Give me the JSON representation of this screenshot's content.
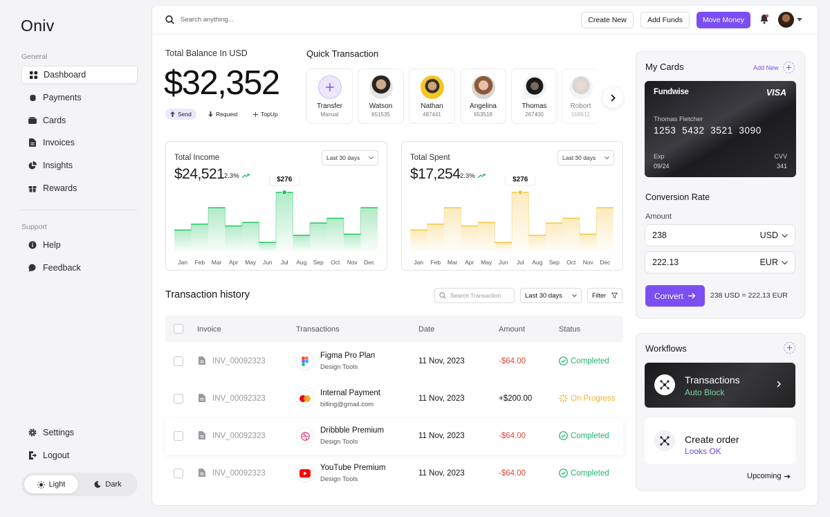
{
  "sidebar": {
    "logo": "Oniv",
    "general_label": "General",
    "general_items": [
      {
        "label": "Dashboard",
        "icon": "grid-icon",
        "active": true
      },
      {
        "label": "Payments",
        "icon": "coins-icon"
      },
      {
        "label": "Cards",
        "icon": "wallet-icon"
      },
      {
        "label": "Invoices",
        "icon": "document-icon"
      },
      {
        "label": "Insights",
        "icon": "pie-chart-icon"
      },
      {
        "label": "Rewards",
        "icon": "gift-icon"
      }
    ],
    "support_label": "Support",
    "support_items": [
      {
        "label": "Help",
        "icon": "info-icon"
      },
      {
        "label": "Feedback",
        "icon": "chat-icon"
      }
    ],
    "bottom_items": [
      {
        "label": "Settings",
        "icon": "gear-icon"
      },
      {
        "label": "Logout",
        "icon": "logout-icon"
      }
    ],
    "theme": {
      "light": "Light",
      "dark": "Dark",
      "selected": "Light"
    }
  },
  "topbar": {
    "search_placeholder": "Search anything...",
    "create_new": "Create New",
    "add_funds": "Add Funds",
    "move_money": "Move Money"
  },
  "balance": {
    "label": "Total Balance In USD",
    "amount": "$32,352",
    "actions": [
      "Send",
      "Request",
      "TopUp"
    ]
  },
  "quick_transaction": {
    "title": "Quick Transaction",
    "contacts": [
      {
        "name": "Transfer",
        "id": "Manual"
      },
      {
        "name": "Watson",
        "id": "651535"
      },
      {
        "name": "Nathan",
        "id": "487441"
      },
      {
        "name": "Angelina",
        "id": "653518"
      },
      {
        "name": "Thomas",
        "id": "267400"
      },
      {
        "name": "Robort",
        "id": "558612"
      }
    ]
  },
  "income": {
    "title": "Total Income",
    "value": "$24,521",
    "change": "2.3%",
    "range": "Last 30 days",
    "tooltip": "$276",
    "color": "#22c55e"
  },
  "spent": {
    "title": "Total Spent",
    "value": "$17,254",
    "change": "2.3%",
    "range": "Last 30 days",
    "tooltip": "$276",
    "color": "#f5c542"
  },
  "chart_data": [
    {
      "type": "area",
      "title": "Total Income",
      "categories": [
        "Jan",
        "Feb",
        "Mar",
        "Apr",
        "May",
        "Jun",
        "Jul",
        "Aug",
        "Sep",
        "Oct",
        "Nov",
        "Dec"
      ],
      "values": [
        0.36,
        0.46,
        0.74,
        0.43,
        0.49,
        0.15,
        1.0,
        0.27,
        0.48,
        0.56,
        0.29,
        0.74
      ],
      "highlight": {
        "category": "Jul",
        "label": "$276"
      },
      "grid": false
    },
    {
      "type": "area",
      "title": "Total Spent",
      "categories": [
        "Jan",
        "Feb",
        "Mar",
        "Apr",
        "May",
        "Jun",
        "Jul",
        "Aug",
        "Sep",
        "Oct",
        "Nov",
        "Dec"
      ],
      "values": [
        0.36,
        0.46,
        0.74,
        0.43,
        0.49,
        0.15,
        1.0,
        0.27,
        0.48,
        0.56,
        0.29,
        0.74
      ],
      "highlight": {
        "category": "Jul",
        "label": "$276"
      },
      "grid": false
    }
  ],
  "history": {
    "title": "Transaction history",
    "search_placeholder": "Search Transaction",
    "range": "Last 30 days",
    "filter": "Filter",
    "headers": [
      "Invoice",
      "Transactions",
      "Date",
      "Amount",
      "Status"
    ],
    "rows": [
      {
        "invoice": "INV_00092323",
        "name": "Figma Pro Plan",
        "sub": "Design Tools",
        "date": "11 Nov, 2023",
        "amount": "-$64.00",
        "status": "Completed",
        "icon": "figma-icon"
      },
      {
        "invoice": "INV_00092323",
        "name": "Internal Payment",
        "sub": "billing@gmail.com",
        "date": "11 Nov, 2023",
        "amount": "+$200.00",
        "status": "On Progress",
        "icon": "mastercard-icon"
      },
      {
        "invoice": "INV_00092323",
        "name": "Dribbble Premium",
        "sub": "Design Tools",
        "date": "11 Nov, 2023",
        "amount": "-$64.00",
        "status": "Completed",
        "icon": "dribbble-icon"
      },
      {
        "invoice": "INV_00092323",
        "name": "YouTube Premium",
        "sub": "Design Tools",
        "date": "11 Nov, 2023",
        "amount": "-$64.00",
        "status": "Completed",
        "icon": "youtube-icon"
      }
    ]
  },
  "my_cards": {
    "title": "My Cards",
    "add_new": "Add New",
    "card": {
      "brand": "Fundwise",
      "network": "VISA",
      "holder": "Thomas Fletcher",
      "number": "1253  5432  3521  3090",
      "exp_label": "Exp",
      "exp": "09/24",
      "cvv_label": "CVV",
      "cvv": "341"
    }
  },
  "conversion": {
    "title": "Conversion Rate",
    "amount_label": "Amount",
    "from_value": "238",
    "from_currency": "USD",
    "to_value": "222.13",
    "to_currency": "EUR",
    "convert": "Convert",
    "result": "238 USD = 222.13 EUR"
  },
  "workflows": {
    "title": "Workflows",
    "items": [
      {
        "title": "Transactions",
        "sub": "Auto Block"
      },
      {
        "title": "Create order",
        "sub": "Looks OK"
      }
    ],
    "upcoming": "Upcoming"
  }
}
